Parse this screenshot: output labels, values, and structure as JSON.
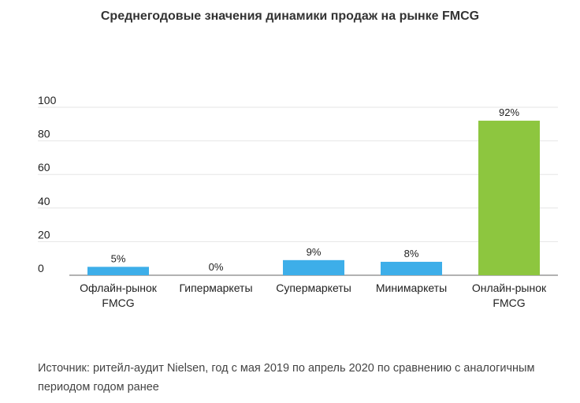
{
  "chart_data": {
    "type": "bar",
    "title": "Среднегодовые значения динамики продаж на рынке FMCG",
    "categories": [
      [
        "Офлайн-рынок",
        "FMCG"
      ],
      [
        "Гипермаркеты"
      ],
      [
        "Супермаркеты"
      ],
      [
        "Минимаркеты"
      ],
      [
        "Онлайн-рынок",
        "FMCG"
      ]
    ],
    "values": [
      5,
      0,
      9,
      8,
      92
    ],
    "data_labels": [
      "5%",
      "0%",
      "9%",
      "8%",
      "92%"
    ],
    "bar_colors": [
      "#3daee9",
      "#3daee9",
      "#3daee9",
      "#3daee9",
      "#8dc63f"
    ],
    "ylim": [
      0,
      100
    ],
    "yticks": [
      "0",
      "20",
      "40",
      "60",
      "80",
      "100"
    ],
    "ytick_values": [
      0,
      20,
      40,
      60,
      80,
      100
    ],
    "grid": true,
    "xlabel": "",
    "ylabel": ""
  },
  "source_note": "Источник: ритейл-аудит Nielsen, год с мая 2019 по апрель 2020 по сравнению с аналогичным периодом годом ранее"
}
